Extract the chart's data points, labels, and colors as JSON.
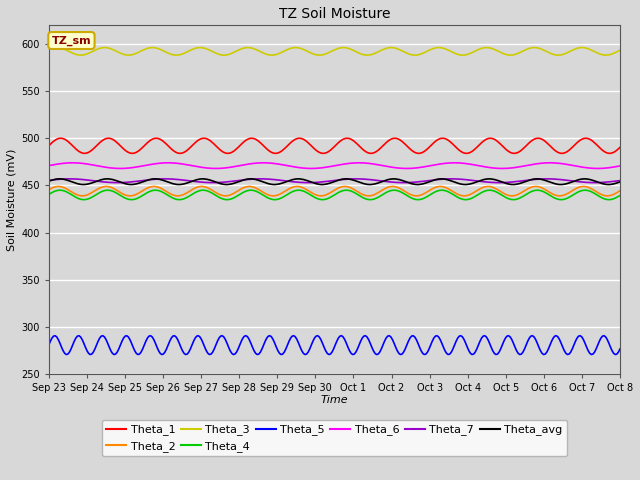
{
  "title": "TZ Soil Moisture",
  "xlabel": "Time",
  "ylabel": "Soil Moisture (mV)",
  "ylim": [
    250,
    620
  ],
  "yticks": [
    250,
    300,
    350,
    400,
    450,
    500,
    550,
    600
  ],
  "background_color": "#d8d8d8",
  "plot_bg_color": "#d8d8d8",
  "grid_color": "white",
  "annotation_label": "TZ_sm",
  "annotation_color": "#8B0000",
  "annotation_bg": "#ffffcc",
  "annotation_border": "#ccaa00",
  "series_order": [
    "Theta_3",
    "Theta_1",
    "Theta_6",
    "Theta_7",
    "Theta_avg",
    "Theta_2",
    "Theta_4",
    "Theta_5"
  ],
  "series": {
    "Theta_1": {
      "color": "#ff0000",
      "base": 492,
      "amp": 8,
      "period": 30,
      "phase": 0.0
    },
    "Theta_2": {
      "color": "#ff8800",
      "base": 444,
      "amp": 5,
      "period": 30,
      "phase": 0.3
    },
    "Theta_3": {
      "color": "#cccc00",
      "base": 592,
      "amp": 4,
      "period": 30,
      "phase": 0.5
    },
    "Theta_4": {
      "color": "#00cc00",
      "base": 440,
      "amp": 5,
      "period": 30,
      "phase": 0.1
    },
    "Theta_5": {
      "color": "#0000ff",
      "base": 281,
      "amp": 10,
      "period": 15,
      "phase": 0.0
    },
    "Theta_6": {
      "color": "#ff00ff",
      "base": 471,
      "amp": 3,
      "period": 60,
      "phase": 0.0
    },
    "Theta_7": {
      "color": "#9900cc",
      "base": 455,
      "amp": 2,
      "period": 60,
      "phase": 0.2
    },
    "Theta_avg": {
      "color": "#000000",
      "base": 454,
      "amp": 3,
      "period": 30,
      "phase": 0.15
    }
  },
  "n_points": 360,
  "x_labels": [
    "Sep 23",
    "Sep 24",
    "Sep 25",
    "Sep 26",
    "Sep 27",
    "Sep 28",
    "Sep 29",
    "Sep 30",
    "Oct 1",
    "Oct 2",
    "Oct 3",
    "Oct 4",
    "Oct 5",
    "Oct 6",
    "Oct 7",
    "Oct 8"
  ],
  "legend_order": [
    "Theta_1",
    "Theta_2",
    "Theta_3",
    "Theta_4",
    "Theta_5",
    "Theta_6",
    "Theta_7",
    "Theta_avg"
  ]
}
